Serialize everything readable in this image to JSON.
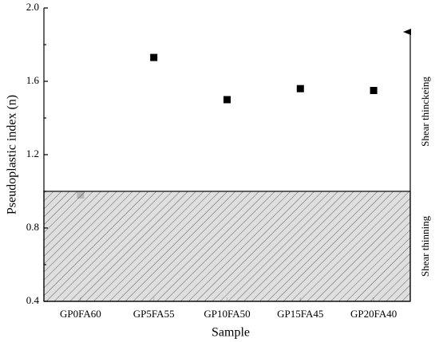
{
  "chart_data": {
    "type": "scatter",
    "x_label": "Sample",
    "y_label": "Pseudoplastic index (n)",
    "categories": [
      "GP0FA60",
      "GP5FA55",
      "GP10FA50",
      "GP15FA45",
      "GP20FA40"
    ],
    "values": [
      0.98,
      1.73,
      1.5,
      1.56,
      1.55
    ],
    "color": "#000000",
    "ylim": [
      0.4,
      2.0
    ],
    "yticks": [
      0.4,
      0.8,
      1.2,
      1.6,
      {
        "value": 2,
        "label": "2.0"
      }
    ],
    "threshold": 1,
    "annotations": [
      "Shear thinckeing",
      "Shear thinning"
    ]
  }
}
